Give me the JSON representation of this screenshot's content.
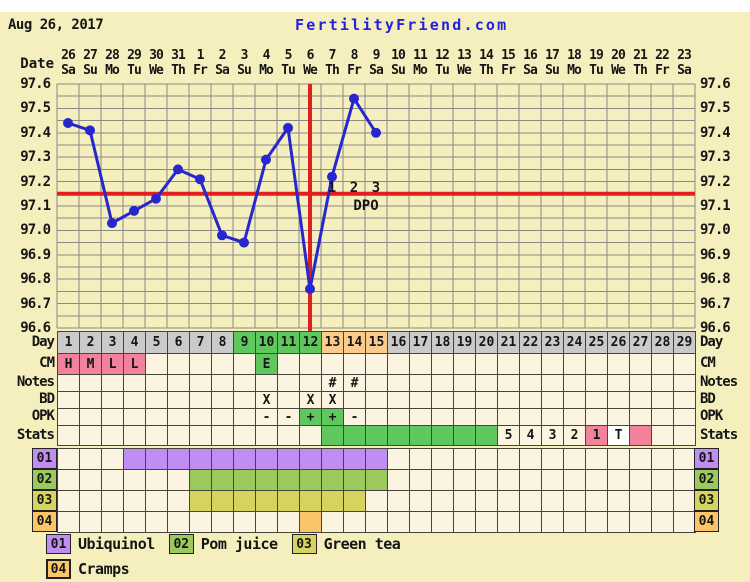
{
  "header": {
    "chart_date": "Aug 26, 2017",
    "brand": "FertilityFriend.com",
    "date_label": "Date",
    "dates": [
      "26",
      "27",
      "28",
      "29",
      "30",
      "31",
      "1",
      "2",
      "3",
      "4",
      "5",
      "6",
      "7",
      "8",
      "9",
      "10",
      "11",
      "12",
      "13",
      "14",
      "15",
      "16",
      "17",
      "18",
      "19",
      "20",
      "21",
      "22",
      "23"
    ],
    "weekdays": [
      "Sa",
      "Su",
      "Mo",
      "Tu",
      "We",
      "Th",
      "Fr",
      "Sa",
      "Su",
      "Mo",
      "Tu",
      "We",
      "Th",
      "Fr",
      "Sa",
      "Su",
      "Mo",
      "Tu",
      "We",
      "Th",
      "Fr",
      "Sa",
      "Su",
      "Mo",
      "Tu",
      "We",
      "Th",
      "Fr",
      "Sa"
    ]
  },
  "y_axis_labels": [
    "97.6",
    "97.5",
    "97.4",
    "97.3",
    "97.2",
    "97.1",
    "97.0",
    "96.9",
    "96.8",
    "96.7",
    "96.6"
  ],
  "chart_data": {
    "type": "line",
    "series_name": "Basal body temperature (F)",
    "cycle_days": [
      1,
      2,
      3,
      4,
      5,
      6,
      7,
      8,
      9,
      10,
      11,
      12,
      13,
      14,
      15
    ],
    "temps_f": [
      97.44,
      97.41,
      97.03,
      97.08,
      97.13,
      97.25,
      97.21,
      96.98,
      96.95,
      97.29,
      97.42,
      96.76,
      97.22,
      97.54,
      97.4
    ],
    "ylim": [
      96.6,
      97.6
    ],
    "y_tick_step": 0.1,
    "grid_step": 0.05,
    "coverline_f": 97.15,
    "ovulation_day": 12,
    "dpo_markers": [
      {
        "day": 13,
        "label": "1"
      },
      {
        "day": 14,
        "label": "2"
      },
      {
        "day": 15,
        "label": "3"
      }
    ],
    "dpo_text": "DPO",
    "total_days_shown": 29,
    "grid": "on"
  },
  "table": {
    "day_row": {
      "label": "Day",
      "values": [
        "1",
        "2",
        "3",
        "4",
        "5",
        "6",
        "7",
        "8",
        "9",
        "10",
        "11",
        "12",
        "13",
        "14",
        "15",
        "16",
        "17",
        "18",
        "19",
        "20",
        "21",
        "22",
        "23",
        "24",
        "25",
        "26",
        "27",
        "28",
        "29"
      ],
      "bg_by_day": {
        "green": [
          9,
          10,
          11,
          12
        ],
        "peach": [
          13,
          14,
          15
        ]
      }
    },
    "cm_row": {
      "label": "CM",
      "entries": [
        {
          "day": 1,
          "text": "H",
          "bg": "pink"
        },
        {
          "day": 2,
          "text": "M",
          "bg": "pink"
        },
        {
          "day": 3,
          "text": "L",
          "bg": "pink"
        },
        {
          "day": 4,
          "text": "L",
          "bg": "pink"
        },
        {
          "day": 10,
          "text": "E",
          "bg": "green"
        }
      ]
    },
    "notes_row": {
      "label": "Notes",
      "entries": [
        {
          "day": 13,
          "text": "#"
        },
        {
          "day": 14,
          "text": "#"
        }
      ]
    },
    "bd_row": {
      "label": "BD",
      "entries": [
        {
          "day": 10,
          "text": "X"
        },
        {
          "day": 12,
          "text": "X"
        },
        {
          "day": 13,
          "text": "X"
        }
      ]
    },
    "opk_row": {
      "label": "OPK",
      "entries": [
        {
          "day": 10,
          "text": "-"
        },
        {
          "day": 11,
          "text": "-"
        },
        {
          "day": 12,
          "text": "+",
          "bg": "green"
        },
        {
          "day": 13,
          "text": "+",
          "bg": "green"
        },
        {
          "day": 14,
          "text": "-"
        }
      ]
    },
    "stats_row": {
      "label": "Stats",
      "entries": [
        {
          "day": 13,
          "bg": "green"
        },
        {
          "day": 14,
          "bg": "green"
        },
        {
          "day": 15,
          "bg": "green"
        },
        {
          "day": 16,
          "bg": "green"
        },
        {
          "day": 17,
          "bg": "green"
        },
        {
          "day": 18,
          "bg": "green"
        },
        {
          "day": 19,
          "bg": "green"
        },
        {
          "day": 20,
          "bg": "green"
        },
        {
          "day": 21,
          "text": "5"
        },
        {
          "day": 22,
          "text": "4"
        },
        {
          "day": 23,
          "text": "3"
        },
        {
          "day": 24,
          "text": "2"
        },
        {
          "day": 25,
          "text": "1",
          "bg": "pink"
        },
        {
          "day": 26,
          "text": "T",
          "bg": "white"
        },
        {
          "day": 27,
          "bg": "pink"
        }
      ]
    },
    "custom_rows": [
      {
        "code": "01",
        "name": "Ubiquinol",
        "color_key": "purple",
        "days_from": 4,
        "days_to": 15
      },
      {
        "code": "02",
        "name": "Pom juice",
        "color_key": "green02",
        "days_from": 7,
        "days_to": 15
      },
      {
        "code": "03",
        "name": "Green tea",
        "color_key": "yellow03",
        "days_from": 7,
        "days_to": 14
      },
      {
        "code": "04",
        "name": "Cramps",
        "color_key": "orange04",
        "days_from": 12,
        "days_to": 12
      }
    ]
  },
  "legend": {
    "rows": [
      [
        {
          "code": "01",
          "label": "Ubiquinol",
          "color_key": "purple"
        },
        {
          "code": "02",
          "label": "Pom juice",
          "color_key": "green02"
        },
        {
          "code": "03",
          "label": "Green tea",
          "color_key": "yellow03"
        }
      ],
      [
        {
          "code": "04",
          "label": "Cramps",
          "color_key": "orange04"
        }
      ]
    ]
  },
  "colors": {
    "page_bg": "#f5efbd",
    "cream": "#faf4e1",
    "gray": "#cacaca",
    "green": "#5ec75e",
    "peach": "#fcca8d",
    "pink": "#f2819b",
    "white": "#ffffff",
    "purple": "#c08ef0",
    "green02": "#9cc95b",
    "yellow03": "#d6d45f",
    "orange04": "#fac468",
    "grid_gray": "#8a8a8a",
    "line_blue": "#2727cf",
    "line_red": "#e11f1f",
    "brand_blue": "#2222dd"
  }
}
